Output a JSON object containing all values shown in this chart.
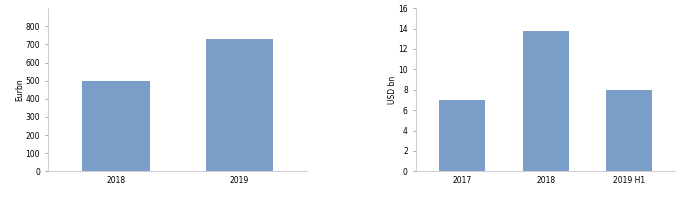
{
  "left": {
    "categories": [
      "2018",
      "2019"
    ],
    "values": [
      500,
      730
    ],
    "ylabel": "Eurbn",
    "ylim": [
      0,
      900
    ],
    "yticks": [
      0,
      100,
      200,
      300,
      400,
      500,
      600,
      700,
      800
    ],
    "bar_color": "#7b9ec9"
  },
  "right": {
    "categories": [
      "2017",
      "2018",
      "2019 H1"
    ],
    "values": [
      7.0,
      13.8,
      8.0
    ],
    "ylabel": "USD bn",
    "ylim": [
      0,
      16
    ],
    "yticks": [
      0,
      2,
      4,
      6,
      8,
      10,
      12,
      14,
      16
    ],
    "bar_color": "#7b9ec9"
  },
  "bar_width": 0.55,
  "tick_fontsize": 5.5,
  "label_fontsize": 5.5,
  "spine_color": "#bbbbbb",
  "tick_color": "#888888",
  "background_color": "#ffffff"
}
